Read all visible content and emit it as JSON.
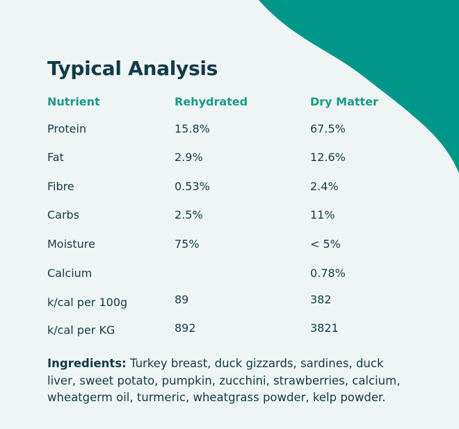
{
  "title": "Typical Analysis",
  "columns": [
    "Nutrient",
    "Rehydrated",
    "Dry Matter"
  ],
  "rows": [
    {
      "nutrient": "Protein",
      "rehydrated": "15.8%",
      "dry": "67.5%"
    },
    {
      "nutrient": "Fat",
      "rehydrated": "2.9%",
      "dry": "12.6%"
    },
    {
      "nutrient": "Fibre",
      "rehydrated": "0.53%",
      "dry": "2.4%"
    },
    {
      "nutrient": "Carbs",
      "rehydrated": "2.5%",
      "dry": "11%"
    },
    {
      "nutrient": "Moisture",
      "rehydrated": "75%",
      "dry": "< 5%"
    },
    {
      "nutrient": "Calcium",
      "rehydrated": "",
      "dry": "0.78%"
    },
    {
      "nutrient": "k/cal per 100g",
      "rehydrated": "89",
      "dry": "382"
    },
    {
      "nutrient": "k/cal per KG",
      "rehydrated": "892",
      "dry": "3821"
    }
  ],
  "ingredients": {
    "label": "Ingredients:",
    "text": " Turkey breast, duck gizzards, sardines, duck liver, sweet potato, pumpkin, zucchini, strawberries, calcium, wheatgerm oil, turmeric, wheatgrass powder, kelp powder."
  },
  "colors": {
    "background": "#eef5f4",
    "accent": "#00968a",
    "heading_text": "#123b47",
    "column_header": "#1a9a87"
  }
}
